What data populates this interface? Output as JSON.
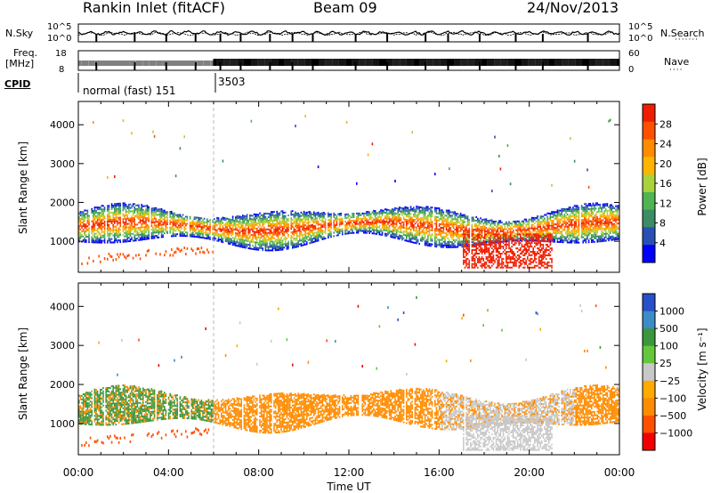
{
  "header": {
    "title": "Rankin Inlet (fitACF)",
    "beam": "Beam 09",
    "date": "24/Nov/2013"
  },
  "top_panels": {
    "nsky_label": "N.Sky",
    "nsearch_label": "N.Search",
    "nsky_ticks": [
      "10^5",
      "10^0"
    ],
    "nsearch_ticks": [
      "10^5",
      "10^0"
    ],
    "freq_label": "Freq.",
    "freq_unit": "[MHz]",
    "freq_ticks": [
      "18",
      "8"
    ],
    "nave_ticks": [
      "60",
      "0"
    ],
    "nave_label": "Nave",
    "cpid_label": "CPID",
    "cpid_segments": [
      {
        "label": "normal (fast) 151",
        "start_hour": 0
      },
      {
        "label": "3503",
        "start_hour": 6
      }
    ]
  },
  "colors": {
    "power_scale": [
      "#0000ff",
      "#2850b4",
      "#3c8c64",
      "#50b450",
      "#aad23c",
      "#ffb400",
      "#ff8c00",
      "#ff5000",
      "#f01e00"
    ],
    "velocity_scale": [
      "#2850c8",
      "#3c8cc8",
      "#3c963c",
      "#64c83c",
      "#c8c8c8",
      "#ffaa00",
      "#ff8c00",
      "#ff5000",
      "#f00000"
    ]
  },
  "chart_data": [
    {
      "type": "heatmap",
      "name": "Power",
      "ylabel": "Slant Range [km]",
      "xlabel": "",
      "xlim": [
        0,
        24
      ],
      "ylim": [
        200,
        4600
      ],
      "yticks": [
        1000,
        2000,
        3000,
        4000
      ],
      "colorbar_label": "Power [dB]",
      "colorbar_ticks": [
        "28",
        "24",
        "20",
        "16",
        "12",
        "8",
        "4"
      ],
      "colorbar_range": [
        0,
        32
      ]
    },
    {
      "type": "heatmap",
      "name": "Velocity",
      "ylabel": "Slant Range [km]",
      "xlabel": "Time UT",
      "xlim": [
        0,
        24
      ],
      "ylim": [
        200,
        4600
      ],
      "yticks": [
        1000,
        2000,
        3000,
        4000
      ],
      "xticks": [
        "00:00",
        "04:00",
        "08:00",
        "12:00",
        "16:00",
        "20:00",
        "00:00"
      ],
      "colorbar_label": "Velocity [m s⁻¹]",
      "colorbar_ticks": [
        "1000",
        "500",
        "100",
        "25",
        "−25",
        "−100",
        "−500",
        "−1000"
      ]
    }
  ]
}
